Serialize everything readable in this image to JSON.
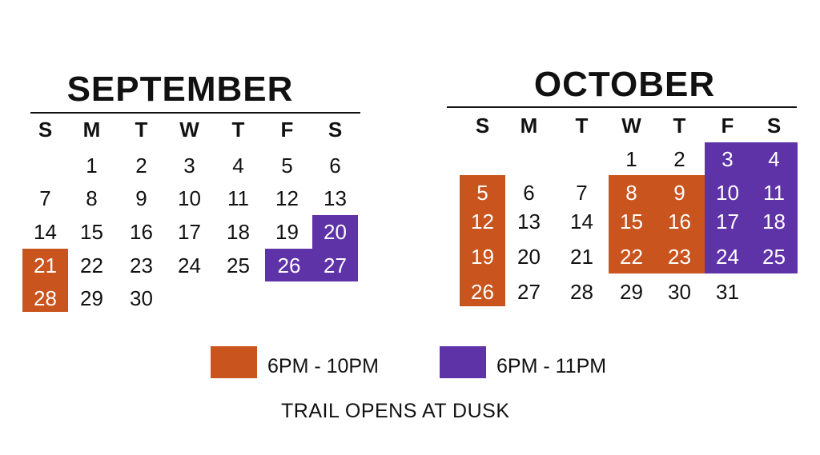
{
  "colors": {
    "orange": "#c9541e",
    "purple": "#5e33a8"
  },
  "september": {
    "title": "SEPTEMBER",
    "weekdays": [
      "S",
      "M",
      "T",
      "W",
      "T",
      "F",
      "S"
    ],
    "days": [
      "1",
      "2",
      "3",
      "4",
      "5",
      "6",
      "7",
      "8",
      "9",
      "10",
      "11",
      "12",
      "13",
      "14",
      "15",
      "16",
      "17",
      "18",
      "19",
      "20",
      "21",
      "22",
      "23",
      "24",
      "25",
      "26",
      "27",
      "28",
      "29",
      "30"
    ]
  },
  "october": {
    "title": "OCTOBER",
    "weekdays": [
      "S",
      "M",
      "T",
      "W",
      "T",
      "F",
      "S"
    ],
    "days": [
      "1",
      "2",
      "3",
      "4",
      "5",
      "6",
      "7",
      "8",
      "9",
      "10",
      "11",
      "12",
      "13",
      "14",
      "15",
      "16",
      "17",
      "18",
      "19",
      "20",
      "21",
      "22",
      "23",
      "24",
      "25",
      "26",
      "27",
      "28",
      "29",
      "30",
      "31"
    ]
  },
  "legend": {
    "orange_label": "6PM - 10PM",
    "purple_label": "6PM - 11PM"
  },
  "footer": "TRAIL OPENS AT DUSK"
}
